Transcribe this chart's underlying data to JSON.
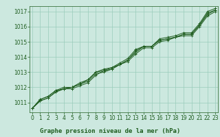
{
  "x": [
    0,
    1,
    2,
    3,
    4,
    5,
    6,
    7,
    8,
    9,
    10,
    11,
    12,
    13,
    14,
    15,
    16,
    17,
    18,
    19,
    20,
    21,
    22,
    23
  ],
  "series": [
    [
      1010.6,
      1011.2,
      1011.4,
      1011.8,
      1011.9,
      1012.0,
      1012.2,
      1012.5,
      1013.0,
      1013.1,
      1013.3,
      1013.5,
      1013.8,
      1014.4,
      1014.7,
      1014.7,
      1015.1,
      1015.2,
      1015.3,
      1015.5,
      1015.5,
      1016.1,
      1016.9,
      1017.1
    ],
    [
      1010.6,
      1011.1,
      1011.3,
      1011.7,
      1011.9,
      1011.9,
      1012.1,
      1012.3,
      1012.8,
      1013.1,
      1013.2,
      1013.5,
      1013.7,
      1014.2,
      1014.6,
      1014.6,
      1015.0,
      1015.1,
      1015.3,
      1015.4,
      1015.4,
      1016.0,
      1016.7,
      1017.0
    ],
    [
      1010.6,
      1011.1,
      1011.3,
      1011.7,
      1011.9,
      1012.0,
      1012.2,
      1012.4,
      1012.9,
      1013.0,
      1013.2,
      1013.5,
      1013.8,
      1014.3,
      1014.7,
      1014.7,
      1015.1,
      1015.2,
      1015.3,
      1015.5,
      1015.5,
      1016.1,
      1016.8,
      1017.1
    ],
    [
      1010.6,
      1011.2,
      1011.4,
      1011.8,
      1012.0,
      1012.0,
      1012.3,
      1012.5,
      1013.0,
      1013.2,
      1013.3,
      1013.6,
      1013.9,
      1014.5,
      1014.7,
      1014.7,
      1015.2,
      1015.3,
      1015.4,
      1015.6,
      1015.6,
      1016.2,
      1017.0,
      1017.2
    ]
  ],
  "line_color": "#1e5c1e",
  "marker": "+",
  "marker_size": 3.5,
  "linewidth": 0.7,
  "bg_color": "#cce8df",
  "grid_color": "#99ccbb",
  "xlabel": "Graphe pression niveau de la mer (hPa)",
  "xlabel_color": "#1e5c1e",
  "xlabel_fontsize": 6.5,
  "tick_color": "#1e5c1e",
  "tick_fontsize": 5.5,
  "ylim": [
    1010.35,
    1017.35
  ],
  "yticks": [
    1011,
    1012,
    1013,
    1014,
    1015,
    1016,
    1017
  ],
  "xticks": [
    0,
    1,
    2,
    3,
    4,
    5,
    6,
    7,
    8,
    9,
    10,
    11,
    12,
    13,
    14,
    15,
    16,
    17,
    18,
    19,
    20,
    21,
    22,
    23
  ]
}
